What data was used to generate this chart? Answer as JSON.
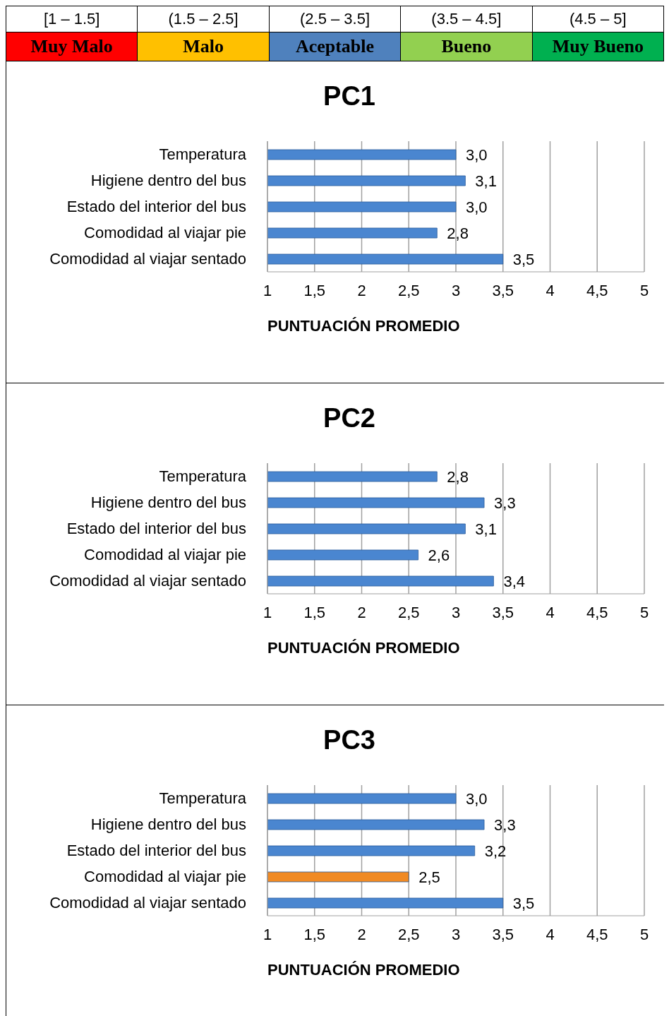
{
  "chart_data": [
    {
      "type": "other",
      "categories": [
        "[1 – 1.5]",
        "(1.5 – 2.5]",
        "(2.5 – 3.5]",
        "(3.5 – 4.5]",
        "(4.5 – 5]"
      ],
      "annotations": [
        "Muy Malo",
        "Malo",
        "Aceptable",
        "Bueno",
        "Muy Bueno"
      ],
      "colors": [
        "#ff0000",
        "#ffc000",
        "#4f81bd",
        "#92d050",
        "#00b050"
      ]
    },
    {
      "type": "bar",
      "orientation": "horizontal",
      "title": "PC1",
      "xlabel": "PUNTUACIÓN PROMEDIO",
      "categories": [
        "Temperatura",
        "Higiene dentro del bus",
        "Estado del interior del bus",
        "Comodidad al viajar pie",
        "Comodidad al viajar sentado"
      ],
      "values": [
        3.0,
        3.1,
        3.0,
        2.8,
        3.5
      ],
      "value_labels": [
        "3,0",
        "3,1",
        "3,0",
        "2,8",
        "3,5"
      ],
      "colors": [
        "#4a86d0",
        "#4a86d0",
        "#4a86d0",
        "#4a86d0",
        "#4a86d0"
      ],
      "xlim": [
        1,
        5
      ],
      "xticks": [
        1,
        {
          "value": 1.5,
          "label": "1,5"
        },
        2,
        {
          "value": 2.5,
          "label": "2,5"
        },
        3,
        {
          "value": 3.5,
          "label": "3,5"
        },
        4,
        {
          "value": 4.5,
          "label": "4,5"
        },
        5
      ],
      "grid": "x",
      "legend": false
    },
    {
      "type": "bar",
      "orientation": "horizontal",
      "title": "PC2",
      "xlabel": "PUNTUACIÓN PROMEDIO",
      "categories": [
        "Temperatura",
        "Higiene dentro del bus",
        "Estado del interior del bus",
        "Comodidad al viajar pie",
        "Comodidad al viajar sentado"
      ],
      "values": [
        2.8,
        3.3,
        3.1,
        2.6,
        3.4
      ],
      "value_labels": [
        "2,8",
        "3,3",
        "3,1",
        "2,6",
        "3,4"
      ],
      "colors": [
        "#4a86d0",
        "#4a86d0",
        "#4a86d0",
        "#4a86d0",
        "#4a86d0"
      ],
      "xlim": [
        1,
        5
      ],
      "xticks": [
        1,
        {
          "value": 1.5,
          "label": "1,5"
        },
        2,
        {
          "value": 2.5,
          "label": "2,5"
        },
        3,
        {
          "value": 3.5,
          "label": "3,5"
        },
        4,
        {
          "value": 4.5,
          "label": "4,5"
        },
        5
      ],
      "grid": "x",
      "legend": false
    },
    {
      "type": "bar",
      "orientation": "horizontal",
      "title": "PC3",
      "xlabel": "PUNTUACIÓN PROMEDIO",
      "categories": [
        "Temperatura",
        "Higiene dentro del bus",
        "Estado del interior del bus",
        "Comodidad al viajar pie",
        "Comodidad al viajar sentado"
      ],
      "values": [
        3.0,
        3.3,
        3.2,
        2.5,
        3.5
      ],
      "value_labels": [
        "3,0",
        "3,3",
        "3,2",
        "2,5",
        "3,5"
      ],
      "colors": [
        "#4a86d0",
        "#4a86d0",
        "#4a86d0",
        "#f08a24",
        "#4a86d0"
      ],
      "xlim": [
        1,
        5
      ],
      "xticks": [
        1,
        {
          "value": 1.5,
          "label": "1,5"
        },
        2,
        {
          "value": 2.5,
          "label": "2,5"
        },
        3,
        {
          "value": 3.5,
          "label": "3,5"
        },
        4,
        {
          "value": 4.5,
          "label": "4,5"
        },
        5
      ],
      "grid": "x",
      "legend": false
    }
  ]
}
